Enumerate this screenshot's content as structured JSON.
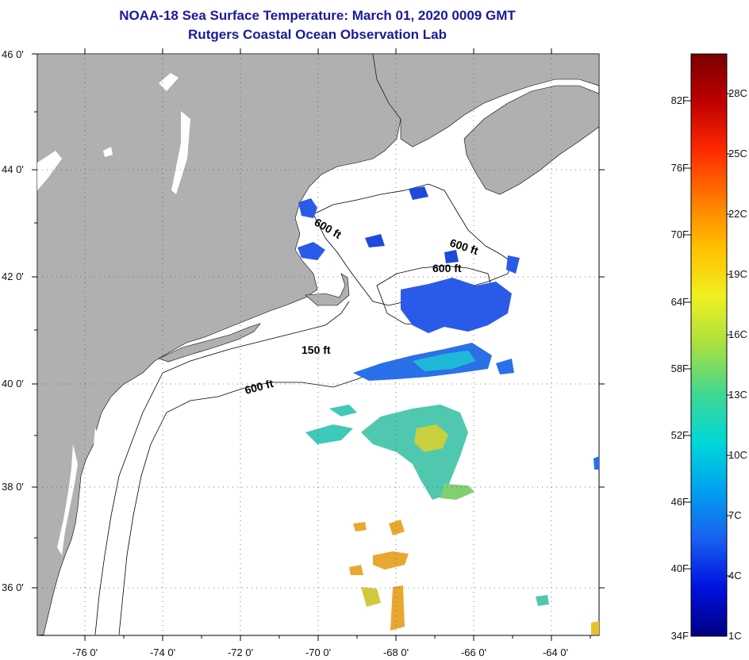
{
  "header": {
    "title_line1": "NOAA-18 Sea Surface Temperature:  March 01, 2020 0009 GMT",
    "title_line2": "Rutgers Coastal Ocean Observation Lab"
  },
  "map": {
    "lat_labels": [
      "46 0'",
      "44 0'",
      "42 0'",
      "40 0'",
      "38 0'",
      "36 0'"
    ],
    "lon_labels": [
      "-76 0'",
      "-74 0'",
      "-72 0'",
      "-70 0'",
      "-68 0'",
      "-66 0'",
      "-64 0'"
    ],
    "contour_labels": [
      "600 ft",
      "600 ft",
      "600 ft",
      "150 ft",
      "600 ft"
    ],
    "colors": {
      "land": "#b0b0b0",
      "ocean": "#ffffff",
      "title": "#1a1a9a"
    }
  },
  "colorbar": {
    "fahrenheit_labels": [
      "82F",
      "76F",
      "70F",
      "64F",
      "58F",
      "52F",
      "46F",
      "40F",
      "34F"
    ],
    "celsius_labels": [
      "28C",
      "25C",
      "22C",
      "19C",
      "16C",
      "13C",
      "10C",
      "7C",
      "4C",
      "1C"
    ],
    "gradient_colors": [
      "#7a0000",
      "#c00000",
      "#ff2a00",
      "#ff7a00",
      "#ffc000",
      "#f0f020",
      "#a8e040",
      "#40d890",
      "#00d8d8",
      "#00a0f0",
      "#1860f0",
      "#0010e0",
      "#000080"
    ]
  }
}
